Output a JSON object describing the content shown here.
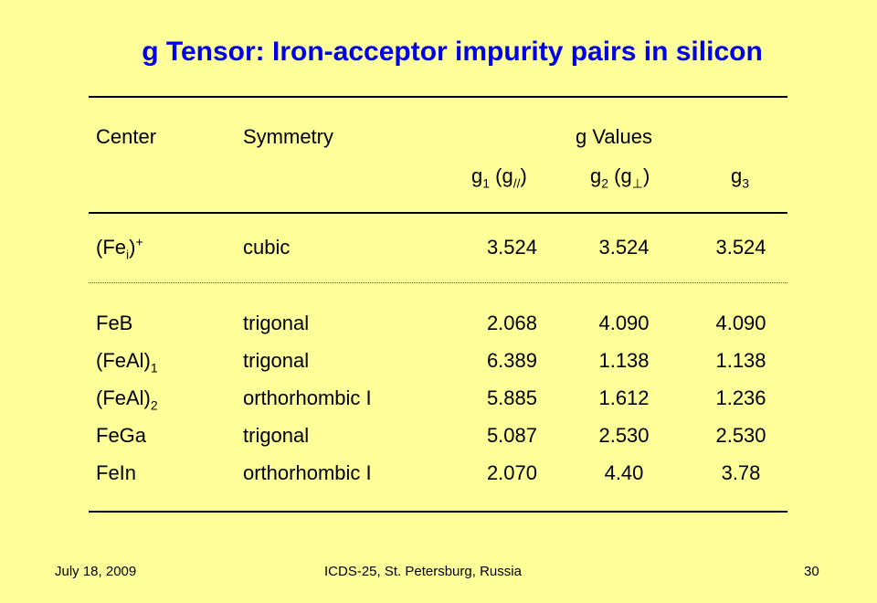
{
  "slide": {
    "title": "g Tensor: Iron-acceptor impurity pairs in silicon",
    "footer": {
      "date": "July 18, 2009",
      "conference": "ICDS-25, St. Petersburg, Russia",
      "page": "30"
    }
  },
  "table": {
    "headers": {
      "center": "Center",
      "symmetry": "Symmetry",
      "g_values": "g Values",
      "g1": {
        "base": "g",
        "sub": "1",
        "paren_base": "g",
        "paren_sub": "//"
      },
      "g2": {
        "base": "g",
        "sub": "2",
        "paren_base": "g",
        "paren_sub": "⊥"
      },
      "g3": {
        "base": "g",
        "sub": "3"
      }
    },
    "rows": [
      {
        "center_base": "(Fe",
        "center_sub": "i",
        "center_close": ")",
        "center_sup": "+",
        "symmetry": "cubic",
        "g1": "3.524",
        "g2": "3.524",
        "g3": "3.524"
      },
      {
        "center": "FeB",
        "symmetry": "trigonal",
        "g1": "2.068",
        "g2": "4.090",
        "g3": "4.090"
      },
      {
        "center_base": "(FeAl)",
        "center_sub": "1",
        "symmetry": "trigonal",
        "g1": "6.389",
        "g2": "1.138",
        "g3": "1.138"
      },
      {
        "center_base": "(FeAl)",
        "center_sub": "2",
        "symmetry": "orthorhombic I",
        "g1": "5.885",
        "g2": "1.612",
        "g3": "1.236"
      },
      {
        "center": "FeGa",
        "symmetry": "trigonal",
        "g1": "5.087",
        "g2": "2.530",
        "g3": "2.530"
      },
      {
        "center": "FeIn",
        "symmetry": "orthorhombic I",
        "g1": "2.070",
        "g2": "4.40",
        "g3": "3.78"
      }
    ]
  }
}
